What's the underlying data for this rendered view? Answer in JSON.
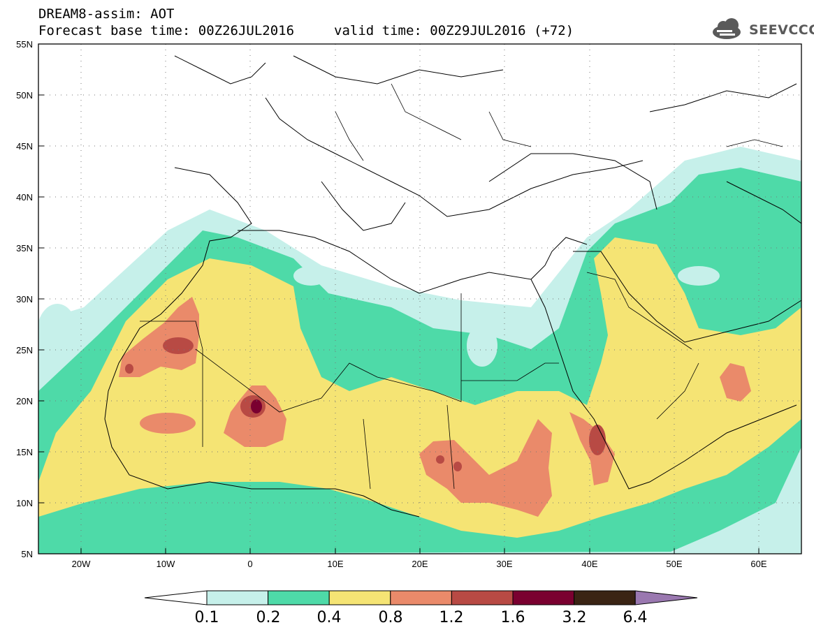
{
  "header": {
    "title": "DREAM8-assim: AOT",
    "base_time": "Forecast base time: 00Z26JUL2016",
    "valid_time": "valid time: 00Z29JUL2016 (+72)",
    "logo_text": "SEEVCCC"
  },
  "map": {
    "lat_labels": [
      "55N",
      "50N",
      "45N",
      "40N",
      "35N",
      "30N",
      "25N",
      "20N",
      "15N",
      "10N",
      "5N"
    ],
    "lon_labels": [
      "20W",
      "10W",
      "0",
      "10E",
      "20E",
      "30E",
      "40E",
      "50E",
      "60E"
    ],
    "lon_range": [
      -25,
      65
    ],
    "lat_range": [
      5,
      55
    ]
  },
  "colorbar": {
    "levels": [
      "0.1",
      "0.2",
      "0.4",
      "0.8",
      "1.2",
      "1.6",
      "3.2",
      "6.4"
    ],
    "colors": [
      "#ffffff",
      "#c6f0ea",
      "#4edaa8",
      "#f5e474",
      "#ea8a6a",
      "#b84a44",
      "#7a0030",
      "#3a2414",
      "#9a78b0"
    ]
  }
}
